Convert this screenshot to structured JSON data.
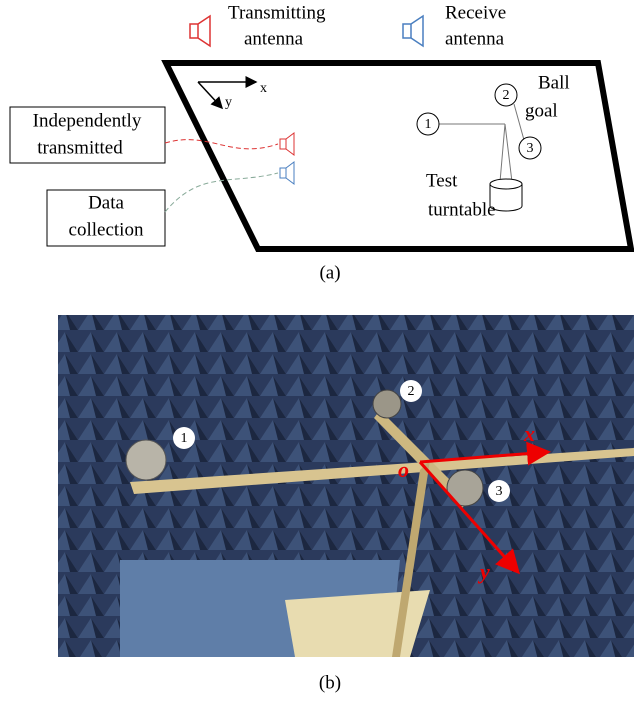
{
  "legend": {
    "transmitting": [
      "Transmitting",
      "antenna"
    ],
    "receive": [
      "Receive",
      "antenna"
    ]
  },
  "panel_a": {
    "axes": {
      "x": "x",
      "y": "y"
    },
    "targets": [
      "1",
      "2",
      "3"
    ],
    "ball_goal": [
      "Ball",
      "goal"
    ],
    "turntable": [
      "Test",
      "turntable"
    ],
    "boxes": [
      [
        "Independently",
        "transmitted"
      ],
      [
        "Data",
        "collection"
      ]
    ],
    "caption": "(a)"
  },
  "panel_b": {
    "balls": [
      "1",
      "2",
      "3"
    ],
    "axes": {
      "x": "x",
      "y": "y",
      "origin": "o"
    },
    "caption": "(b)"
  }
}
